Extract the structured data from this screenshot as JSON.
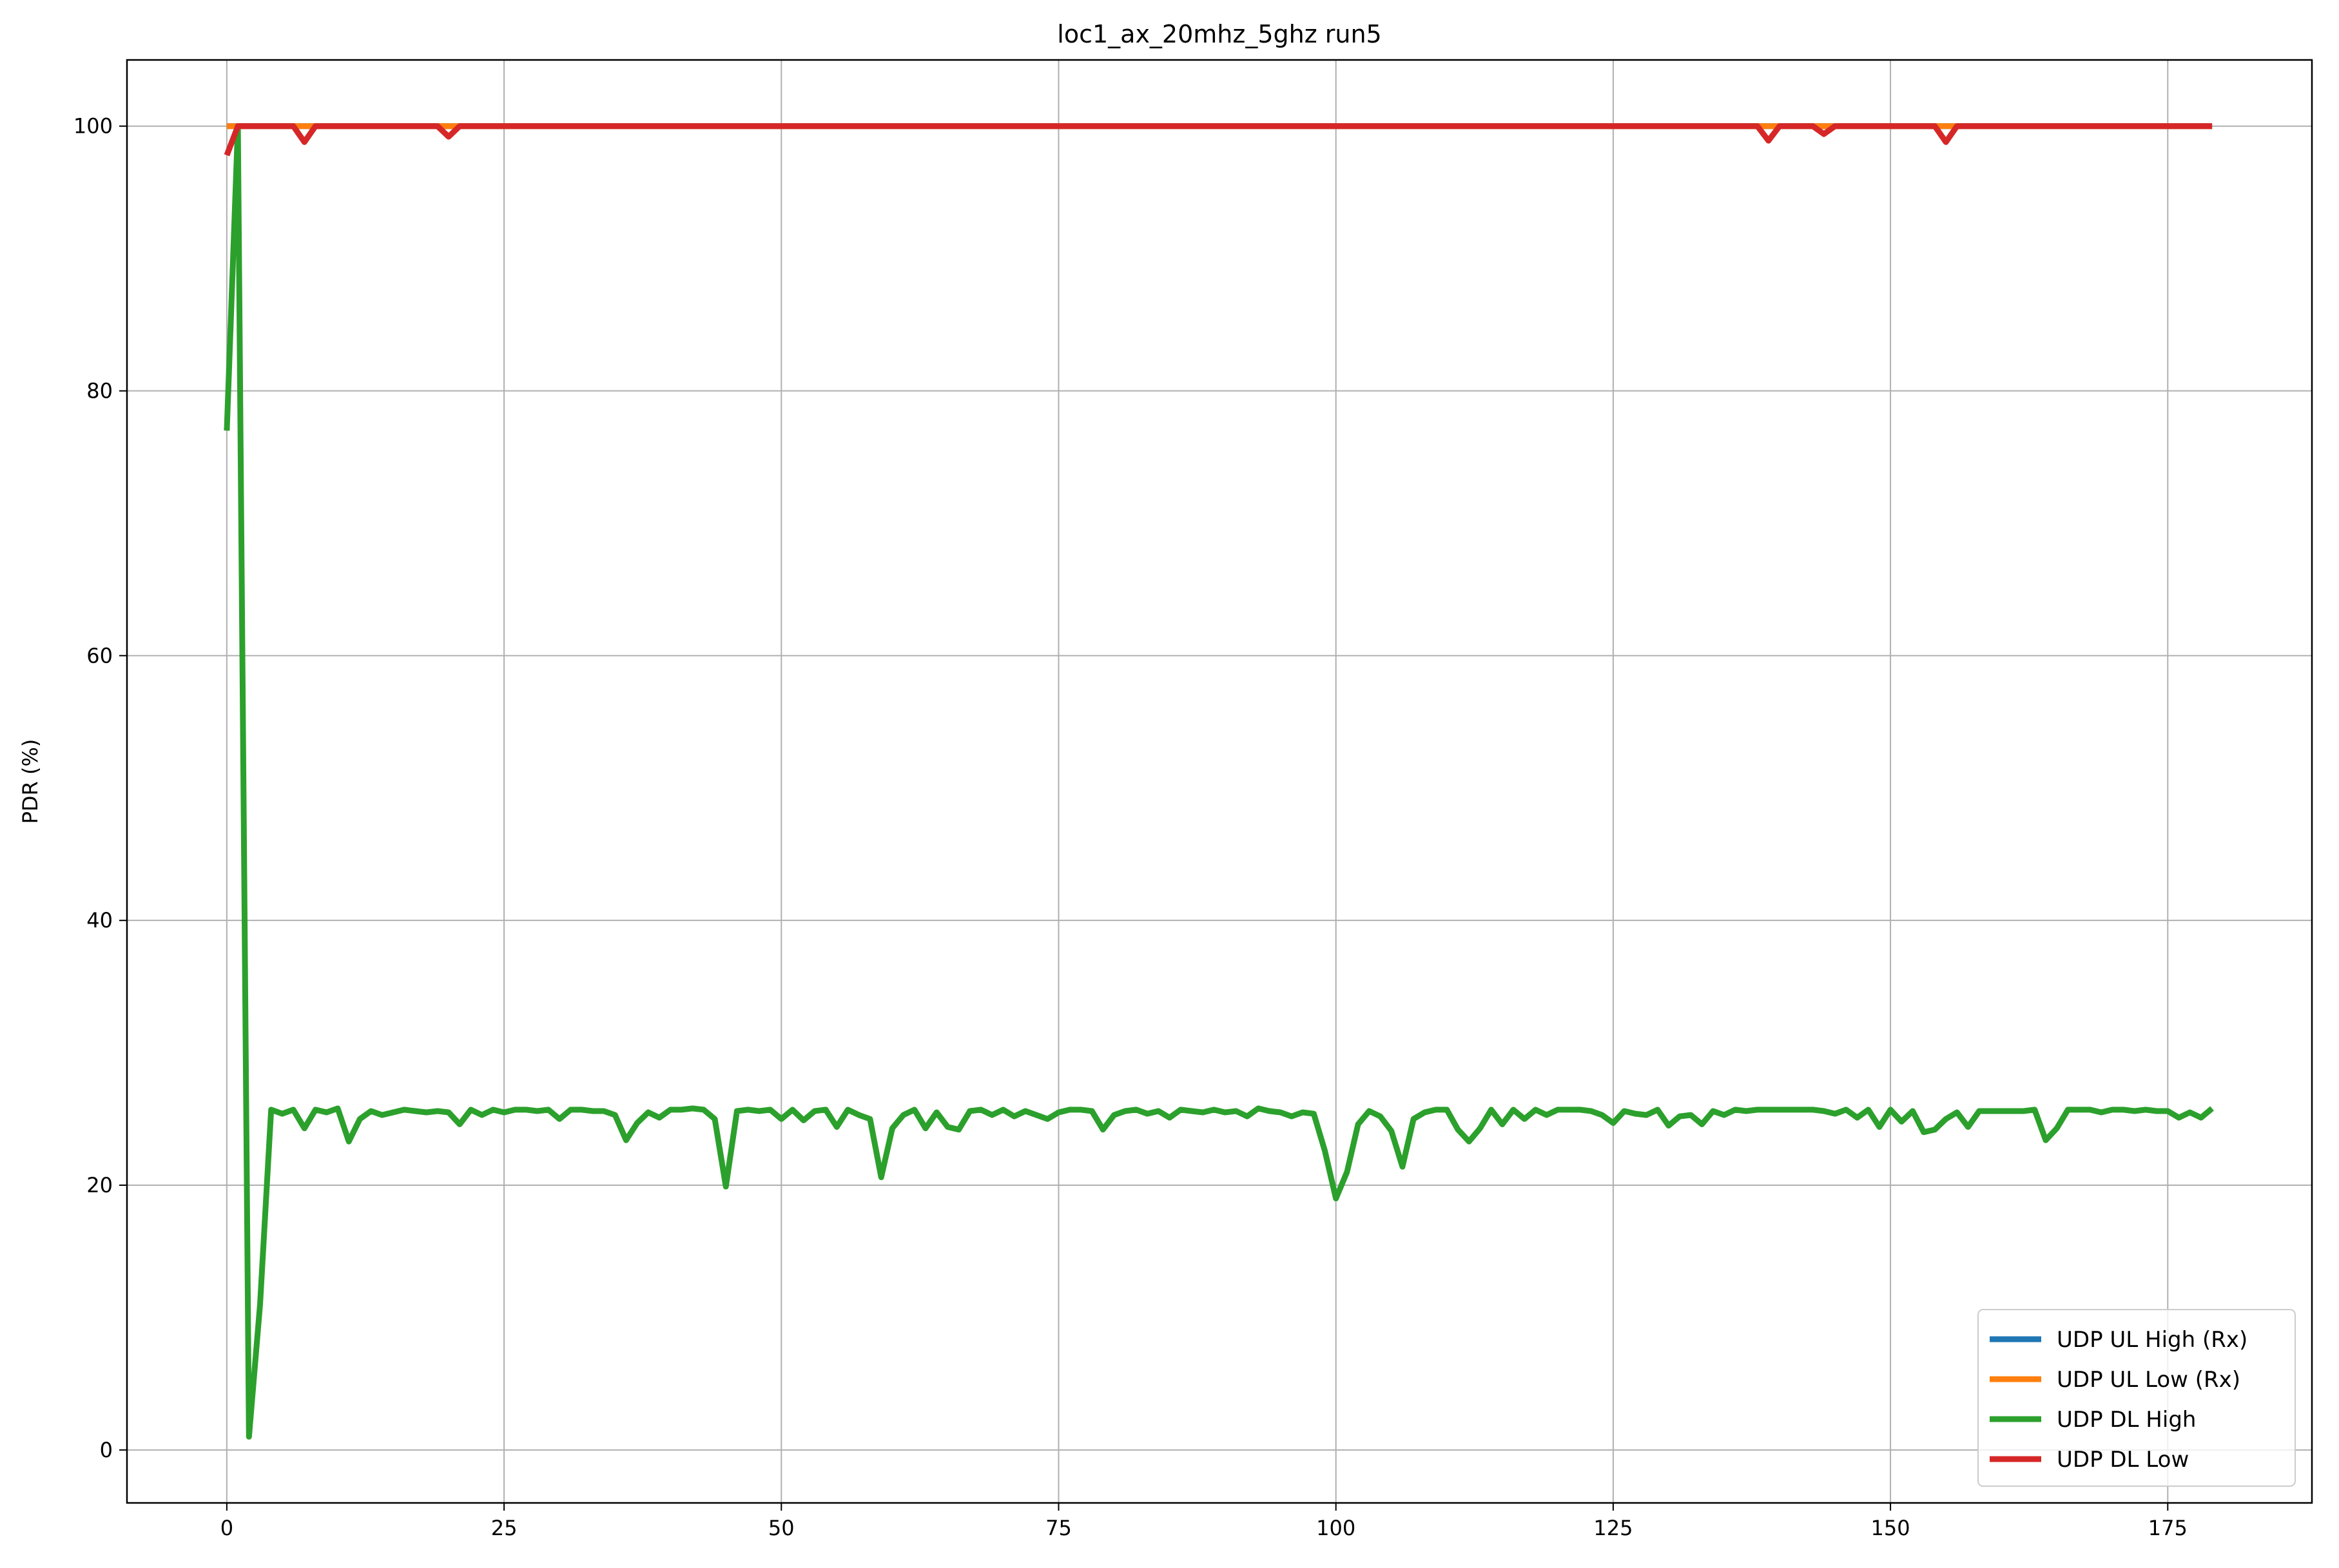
{
  "chart_data": {
    "type": "line",
    "title": "loc1_ax_20mhz_5ghz run5",
    "xlabel": "",
    "ylabel": "PDR (%)",
    "xlim": [
      -9,
      188
    ],
    "ylim": [
      -4,
      105
    ],
    "xticks": [
      0,
      25,
      50,
      75,
      100,
      125,
      150,
      175
    ],
    "yticks": [
      0,
      20,
      40,
      60,
      80,
      100
    ],
    "grid": true,
    "legend_position": "lower-right",
    "series": [
      {
        "name": "UDP UL High (Rx)",
        "color": "#1f77b4",
        "x_start": 0,
        "x_end": 179,
        "base": 100,
        "overrides": {}
      },
      {
        "name": "UDP UL Low (Rx)",
        "color": "#ff7f0e",
        "x_start": 0,
        "x_end": 179,
        "base": 100,
        "overrides": {}
      },
      {
        "name": "UDP DL High",
        "color": "#2ca02c",
        "x_start": 0,
        "x_end": 179,
        "base": 25.6,
        "overrides": {
          "0": 77,
          "1": 100,
          "2": 1,
          "3": 11,
          "4": 25.7,
          "5": 25.4,
          "6": 25.7,
          "7": 24.3,
          "8": 25.7,
          "9": 25.5,
          "10": 25.8,
          "11": 23.3,
          "12": 25.0,
          "13": 25.6,
          "14": 25.3,
          "15": 25.5,
          "16": 25.7,
          "17": 25.6,
          "18": 25.5,
          "19": 25.6,
          "20": 25.5,
          "21": 24.6,
          "22": 25.7,
          "23": 25.3,
          "24": 25.7,
          "25": 25.5,
          "26": 25.7,
          "27": 25.7,
          "28": 25.6,
          "29": 25.7,
          "30": 25.0,
          "31": 25.7,
          "32": 25.7,
          "33": 25.6,
          "34": 25.6,
          "35": 25.3,
          "36": 23.4,
          "37": 24.7,
          "38": 25.5,
          "39": 25.1,
          "40": 25.7,
          "41": 25.7,
          "42": 25.8,
          "43": 25.7,
          "44": 25.0,
          "45": 19.9,
          "46": 25.6,
          "47": 25.7,
          "48": 25.6,
          "49": 25.7,
          "50": 25.0,
          "51": 25.7,
          "52": 24.9,
          "53": 25.6,
          "54": 25.7,
          "55": 24.4,
          "56": 25.7,
          "57": 25.3,
          "58": 25.0,
          "59": 20.6,
          "60": 24.3,
          "61": 25.3,
          "62": 25.7,
          "63": 24.3,
          "64": 25.5,
          "65": 24.4,
          "66": 24.2,
          "67": 25.6,
          "68": 25.7,
          "69": 25.3,
          "70": 25.7,
          "71": 25.2,
          "72": 25.6,
          "73": 25.3,
          "74": 25.0,
          "75": 25.5,
          "76": 25.7,
          "77": 25.7,
          "78": 25.6,
          "79": 24.2,
          "80": 25.3,
          "81": 25.6,
          "82": 25.7,
          "83": 25.4,
          "84": 25.6,
          "85": 25.1,
          "86": 25.7,
          "87": 25.6,
          "88": 25.5,
          "89": 25.7,
          "90": 25.5,
          "91": 25.6,
          "92": 25.2,
          "93": 25.8,
          "94": 25.6,
          "95": 25.5,
          "96": 25.2,
          "97": 25.5,
          "98": 25.4,
          "99": 22.6,
          "100": 19.0,
          "101": 21.0,
          "102": 24.6,
          "103": 25.6,
          "104": 25.2,
          "105": 24.1,
          "106": 21.4,
          "107": 25.0,
          "108": 25.5,
          "109": 25.7,
          "110": 25.7,
          "111": 24.2,
          "112": 23.3,
          "113": 24.3,
          "114": 25.7,
          "115": 24.6,
          "116": 25.7,
          "117": 25.0,
          "118": 25.7,
          "119": 25.3,
          "120": 25.7,
          "121": 25.7,
          "122": 25.7,
          "123": 25.6,
          "124": 25.3,
          "125": 24.7,
          "126": 25.6,
          "127": 25.4,
          "128": 25.3,
          "129": 25.7,
          "130": 24.5,
          "131": 25.2,
          "132": 25.3,
          "133": 24.6,
          "134": 25.6,
          "135": 25.3,
          "136": 25.7,
          "137": 25.6,
          "138": 25.7,
          "139": 25.7,
          "140": 25.7,
          "141": 25.7,
          "142": 25.7,
          "143": 25.7,
          "144": 25.6,
          "145": 25.4,
          "146": 25.7,
          "147": 25.1,
          "148": 25.7,
          "149": 24.4,
          "150": 25.7,
          "151": 24.8,
          "152": 25.6,
          "153": 24.0,
          "154": 24.2,
          "155": 25.0,
          "156": 25.5,
          "157": 24.4,
          "158": 25.6,
          "159": 25.6,
          "160": 25.6,
          "161": 25.6,
          "162": 25.6,
          "163": 25.7,
          "164": 23.4,
          "165": 24.3,
          "166": 25.7,
          "167": 25.7,
          "168": 25.7,
          "169": 25.5,
          "170": 25.7,
          "171": 25.7,
          "172": 25.6,
          "173": 25.7,
          "174": 25.6,
          "175": 25.6,
          "176": 25.1,
          "177": 25.5,
          "178": 25.1,
          "179": 25.8
        }
      },
      {
        "name": "UDP DL Low",
        "color": "#d62728",
        "x_start": 0,
        "x_end": 179,
        "base": 100,
        "overrides": {
          "0": 97.8,
          "7": 98.8,
          "20": 99.2,
          "139": 98.9,
          "144": 99.4,
          "155": 98.8
        }
      }
    ]
  }
}
